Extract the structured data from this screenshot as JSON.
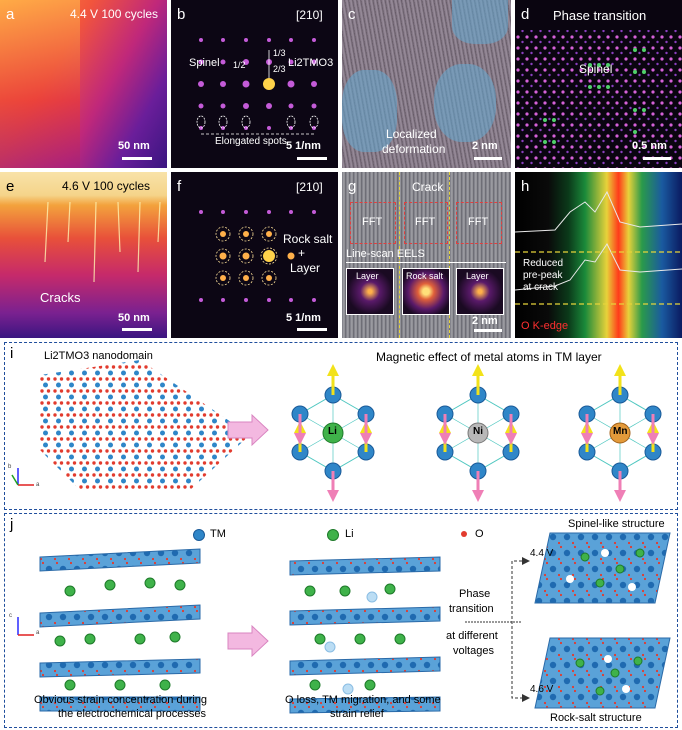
{
  "panels": {
    "a": {
      "label": "a",
      "title": "4.4 V 100 cycles",
      "scale": "50 nm"
    },
    "b": {
      "label": "b",
      "zone": "[210]",
      "spinel": "Spinel",
      "li2tmo3": "Li2TMO3",
      "half": "1/2",
      "third": "1/3",
      "two_third": "2/3",
      "elongated": "Elongated spots",
      "scale": "5 1/nm"
    },
    "c": {
      "label": "c",
      "deform1": "Localized",
      "deform2": "deformation",
      "scale": "2 nm"
    },
    "d": {
      "label": "d",
      "title": "Phase transition",
      "spinel": "Spinel",
      "scale": "0.5 nm"
    },
    "e": {
      "label": "e",
      "title": "4.6 V 100 cycles",
      "cracks": "Cracks",
      "scale": "50 nm"
    },
    "f": {
      "label": "f",
      "zone": "[210]",
      "rocksalt": "Rock salt",
      "plus": "+",
      "layer": "Layer",
      "scale": "5 1/nm"
    },
    "g": {
      "label": "g",
      "crack": "Crack",
      "fft": "FFT",
      "linescan": "Line-scan EELS",
      "layer": "Layer",
      "rocksalt": "Rock salt",
      "scale": "2 nm"
    },
    "h": {
      "label": "h",
      "reduced1": "Reduced",
      "reduced2": "pre-peak",
      "reduced3": "at crack",
      "edge": "O K-edge"
    }
  },
  "section_i": {
    "label": "i",
    "nanodomain": "Li2TMO3 nanodomain",
    "magnetic_title": "Magnetic effect of metal atoms in TM layer",
    "centers": [
      "Li",
      "Ni",
      "Mn"
    ],
    "axes": [
      "b",
      "a"
    ]
  },
  "section_j": {
    "label": "j",
    "legend": {
      "tm": "TM",
      "li": "Li",
      "o": "O"
    },
    "caption_left1": "Obvious strain concentration during",
    "caption_left2": "the electrochemical processes",
    "caption_mid1": "O loss, TM migration, and some",
    "caption_mid2": "strain relief",
    "phase1": "Phase",
    "phase2": "transition",
    "phase3": "at different",
    "phase4": "voltages",
    "v44": "4.4 V",
    "v46": "4.6 V",
    "spinel_like": "Spinel-like structure",
    "rocksalt_structure": "Rock-salt structure",
    "axes": [
      "c",
      "a"
    ]
  },
  "colors": {
    "tm": "#2f86c8",
    "li": "#3fb24a",
    "o": "#e23b2e",
    "slab": "#5aa2d8",
    "spin_up": "#f2e21a",
    "spin_down": "#ef7fb6",
    "frame": "#1f4e9c"
  }
}
